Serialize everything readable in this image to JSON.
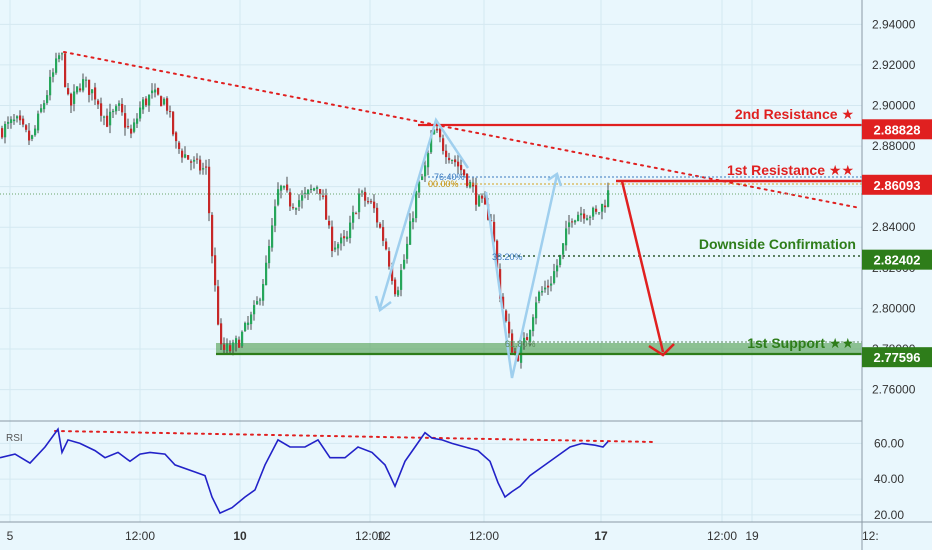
{
  "chart_data": [
    {
      "type": "candlestick",
      "name": "price",
      "ylim": [
        2.745,
        2.952
      ],
      "y_ticks": [
        "2.94000",
        "2.92000",
        "2.90000",
        "2.88000",
        "2.86000",
        "2.84000",
        "2.82000",
        "2.80000",
        "2.78000",
        "2.76000"
      ],
      "x_ticks": [
        "5",
        "12:00",
        "10",
        "12:00",
        "12",
        "12:00",
        "17",
        "12:00",
        "19",
        "12:"
      ],
      "price_path": [
        [
          0,
          2.888
        ],
        [
          15,
          2.892
        ],
        [
          30,
          2.882
        ],
        [
          45,
          2.905
        ],
        [
          60,
          2.927
        ],
        [
          68,
          2.898
        ],
        [
          80,
          2.912
        ],
        [
          95,
          2.905
        ],
        [
          105,
          2.892
        ],
        [
          118,
          2.898
        ],
        [
          130,
          2.885
        ],
        [
          140,
          2.9
        ],
        [
          150,
          2.905
        ],
        [
          165,
          2.902
        ],
        [
          175,
          2.88
        ],
        [
          195,
          2.87
        ],
        [
          205,
          2.868
        ],
        [
          212,
          2.82
        ],
        [
          220,
          2.779
        ],
        [
          232,
          2.78
        ],
        [
          245,
          2.79
        ],
        [
          255,
          2.8
        ],
        [
          265,
          2.82
        ],
        [
          278,
          2.86
        ],
        [
          290,
          2.852
        ],
        [
          305,
          2.855
        ],
        [
          318,
          2.862
        ],
        [
          330,
          2.832
        ],
        [
          345,
          2.832
        ],
        [
          358,
          2.856
        ],
        [
          372,
          2.85
        ],
        [
          385,
          2.83
        ],
        [
          395,
          2.808
        ],
        [
          405,
          2.828
        ],
        [
          415,
          2.856
        ],
        [
          425,
          2.87
        ],
        [
          432,
          2.888
        ],
        [
          442,
          2.88
        ],
        [
          452,
          2.874
        ],
        [
          465,
          2.865
        ],
        [
          478,
          2.852
        ],
        [
          490,
          2.845
        ],
        [
          498,
          2.81
        ],
        [
          508,
          2.785
        ],
        [
          515,
          2.776
        ],
        [
          525,
          2.784
        ],
        [
          535,
          2.805
        ],
        [
          548,
          2.812
        ],
        [
          560,
          2.826
        ],
        [
          570,
          2.846
        ],
        [
          582,
          2.848
        ],
        [
          595,
          2.846
        ],
        [
          603,
          2.852
        ],
        [
          608,
          2.858
        ]
      ],
      "levels": [
        {
          "label": "2nd Resistance ★",
          "value": "2.88828",
          "color": "#e02020"
        },
        {
          "label": "1st Resistance ★★",
          "value": "2.86093",
          "color": "#e02020"
        },
        {
          "label": "Downside Confirmation",
          "value": "2.82402",
          "color": "#2e7d1a"
        },
        {
          "label": "1st Support ★★",
          "value": "2.77596",
          "color": "#2e7d1a"
        }
      ],
      "fib_labels": [
        "76.40%",
        "00.00%",
        "38.20%",
        "61.80%"
      ]
    },
    {
      "type": "line",
      "name": "RSI",
      "title": "RSI",
      "ylim": [
        16,
        72
      ],
      "y_ticks": [
        "60.00",
        "40.00",
        "20.00"
      ],
      "series": [
        {
          "points": [
            [
              0,
              52
            ],
            [
              15,
              54
            ],
            [
              30,
              49
            ],
            [
              45,
              58
            ],
            [
              58,
              68
            ],
            [
              62,
              55
            ],
            [
              68,
              62
            ],
            [
              80,
              60
            ],
            [
              95,
              56
            ],
            [
              105,
              52
            ],
            [
              118,
              55
            ],
            [
              130,
              50
            ],
            [
              140,
              54
            ],
            [
              150,
              55
            ],
            [
              165,
              54
            ],
            [
              175,
              48
            ],
            [
              195,
              44
            ],
            [
              205,
              42
            ],
            [
              212,
              30
            ],
            [
              220,
              21
            ],
            [
              232,
              24
            ],
            [
              245,
              30
            ],
            [
              255,
              34
            ],
            [
              265,
              48
            ],
            [
              278,
              62
            ],
            [
              290,
              58
            ],
            [
              305,
              58
            ],
            [
              318,
              62
            ],
            [
              330,
              52
            ],
            [
              345,
              52
            ],
            [
              358,
              58
            ],
            [
              372,
              55
            ],
            [
              385,
              48
            ],
            [
              395,
              36
            ],
            [
              405,
              50
            ],
            [
              415,
              58
            ],
            [
              425,
              66
            ],
            [
              432,
              63
            ],
            [
              442,
              62
            ],
            [
              452,
              60
            ],
            [
              465,
              58
            ],
            [
              478,
              56
            ],
            [
              490,
              50
            ],
            [
              498,
              38
            ],
            [
              505,
              30
            ],
            [
              512,
              33
            ],
            [
              520,
              36
            ],
            [
              530,
              42
            ],
            [
              545,
              48
            ],
            [
              560,
              54
            ],
            [
              570,
              58
            ],
            [
              582,
              60
            ],
            [
              595,
              59
            ],
            [
              603,
              58
            ],
            [
              608,
              61
            ]
          ]
        }
      ]
    }
  ]
}
